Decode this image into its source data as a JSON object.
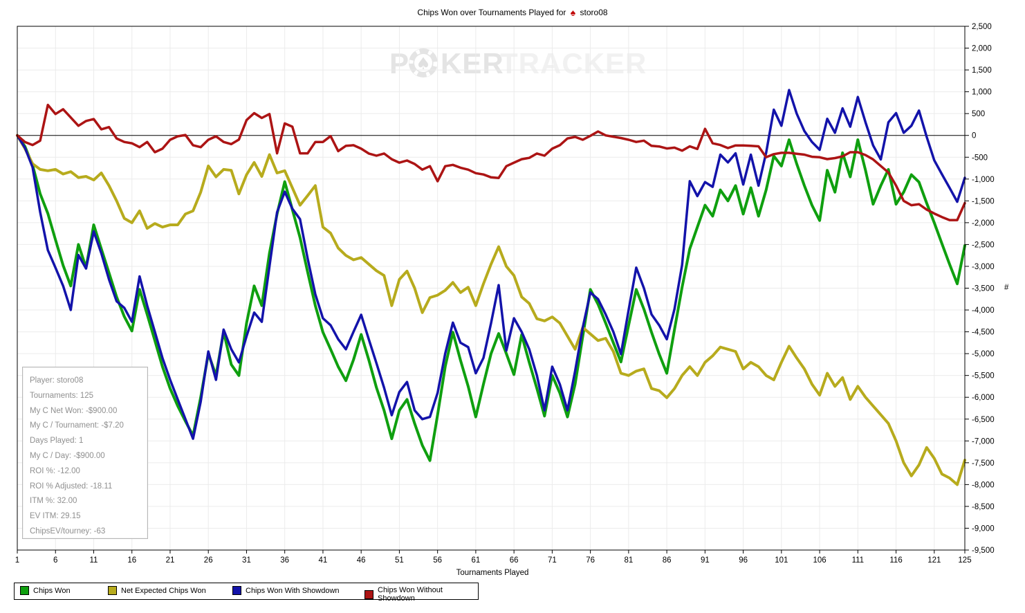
{
  "title": {
    "text": "Chips Won over Tournaments Played for",
    "player": "storo08",
    "spade_icon": "♠"
  },
  "watermark": {
    "part1": "P",
    "part2": "KER",
    "part3": "TRACKER",
    "chip_icon": "poker-chip"
  },
  "info_box": {
    "lines": [
      "Player: storo08",
      "Tournaments: 125",
      "My C Net Won: -$900.00",
      "My C / Tournament: -$7.20",
      "Days Played: 1",
      "My C / Day: -$900.00",
      "ROI %: -12.00",
      "ROI % Adjusted: -18.11",
      "ITM %: 32.00",
      "EV ITM: 29.15",
      "ChipsEV/tourney: -63"
    ]
  },
  "legend": {
    "items": [
      {
        "label": "Chips Won",
        "color": "#0f9f0f"
      },
      {
        "label": "Net Expected Chips Won",
        "color": "#b7ab1d"
      },
      {
        "label": "Chips Won With Showdown",
        "color": "#1313aa"
      },
      {
        "label": "Chips Won Without Showdown",
        "color": "#ac1414"
      }
    ]
  },
  "chart_data": {
    "type": "line",
    "title": "Chips Won over Tournaments Played for storo08",
    "xlabel": "Tournaments Played",
    "ylabel": "#",
    "x_start": 1,
    "x_end": 125,
    "ylim": [
      -9500,
      2500
    ],
    "ytick_step": 500,
    "xticks": [
      1,
      6,
      11,
      16,
      21,
      26,
      31,
      36,
      41,
      46,
      51,
      56,
      61,
      66,
      71,
      76,
      81,
      86,
      91,
      96,
      101,
      106,
      111,
      116,
      121,
      125
    ],
    "grid": true,
    "legend_position": "bottom-left",
    "series": [
      {
        "name": "Chips Won",
        "color": "#0f9f0f",
        "width": 4,
        "values": [
          0,
          -250,
          -680,
          -1340,
          -1790,
          -2390,
          -2980,
          -3450,
          -2500,
          -3030,
          -2050,
          -2600,
          -3150,
          -3700,
          -4150,
          -4480,
          -3530,
          -4100,
          -4700,
          -5300,
          -5800,
          -6200,
          -6550,
          -6880,
          -6000,
          -5000,
          -5500,
          -4500,
          -5250,
          -5500,
          -4300,
          -3450,
          -3900,
          -2700,
          -1800,
          -1060,
          -1700,
          -2340,
          -3130,
          -3900,
          -4510,
          -4900,
          -5300,
          -5620,
          -5140,
          -4560,
          -5140,
          -5780,
          -6300,
          -6950,
          -6300,
          -6050,
          -6600,
          -7100,
          -7450,
          -6400,
          -5300,
          -4510,
          -5150,
          -5750,
          -6450,
          -5700,
          -5000,
          -4540,
          -5000,
          -5480,
          -4570,
          -5200,
          -5800,
          -6430,
          -5500,
          -5900,
          -6450,
          -5700,
          -4600,
          -3530,
          -3870,
          -4300,
          -4750,
          -5190,
          -4350,
          -3530,
          -3980,
          -4510,
          -5010,
          -5450,
          -4450,
          -3480,
          -2600,
          -2100,
          -1600,
          -1850,
          -1250,
          -1500,
          -1150,
          -1800,
          -1200,
          -1850,
          -1250,
          -470,
          -700,
          -100,
          -650,
          -1150,
          -1600,
          -1950,
          -800,
          -1300,
          -400,
          -950,
          -100,
          -800,
          -1575,
          -1150,
          -780,
          -1575,
          -1300,
          -900,
          -1070,
          -1550,
          -2000,
          -2480,
          -2950,
          -3400,
          -2525
        ]
      },
      {
        "name": "Net Expected Chips Won",
        "color": "#b7ab1d",
        "width": 4,
        "values": [
          0,
          -300,
          -650,
          -780,
          -810,
          -780,
          -885,
          -830,
          -965,
          -940,
          -1020,
          -860,
          -1150,
          -1500,
          -1900,
          -2000,
          -1730,
          -2130,
          -2020,
          -2100,
          -2050,
          -2050,
          -1800,
          -1730,
          -1300,
          -700,
          -950,
          -780,
          -800,
          -1340,
          -900,
          -620,
          -940,
          -440,
          -860,
          -810,
          -1200,
          -1600,
          -1380,
          -1150,
          -2100,
          -2240,
          -2580,
          -2750,
          -2850,
          -2800,
          -2950,
          -3100,
          -3210,
          -3900,
          -3300,
          -3110,
          -3500,
          -4060,
          -3715,
          -3660,
          -3550,
          -3370,
          -3600,
          -3480,
          -3900,
          -3400,
          -2950,
          -2550,
          -3000,
          -3210,
          -3700,
          -3850,
          -4200,
          -4250,
          -4160,
          -4300,
          -4600,
          -4900,
          -4400,
          -4550,
          -4700,
          -4650,
          -4950,
          -5450,
          -5500,
          -5400,
          -5350,
          -5800,
          -5850,
          -6010,
          -5800,
          -5500,
          -5300,
          -5500,
          -5200,
          -5050,
          -4850,
          -4900,
          -4950,
          -5350,
          -5200,
          -5300,
          -5500,
          -5600,
          -5200,
          -4830,
          -5100,
          -5350,
          -5700,
          -5950,
          -5450,
          -5750,
          -5550,
          -6050,
          -5750,
          -6000,
          -6200,
          -6400,
          -6600,
          -7000,
          -7500,
          -7800,
          -7550,
          -7150,
          -7400,
          -7760,
          -7850,
          -8000,
          -7440
        ]
      },
      {
        "name": "Chips Won With Showdown",
        "color": "#1313aa",
        "width": 3.5,
        "values": [
          0,
          -280,
          -730,
          -1760,
          -2630,
          -3030,
          -3450,
          -4000,
          -2740,
          -3050,
          -2200,
          -2700,
          -3300,
          -3800,
          -3950,
          -4270,
          -3230,
          -3900,
          -4500,
          -5100,
          -5600,
          -6050,
          -6500,
          -6950,
          -6100,
          -4950,
          -5600,
          -4450,
          -4900,
          -5200,
          -4600,
          -4060,
          -4270,
          -3000,
          -1760,
          -1290,
          -1680,
          -1920,
          -2820,
          -3640,
          -4190,
          -4350,
          -4670,
          -4900,
          -4500,
          -4110,
          -4670,
          -5220,
          -5780,
          -6410,
          -5880,
          -5650,
          -6300,
          -6500,
          -6450,
          -5900,
          -5000,
          -4290,
          -4750,
          -4850,
          -5450,
          -5100,
          -4300,
          -3430,
          -4930,
          -4190,
          -4500,
          -4900,
          -5500,
          -6300,
          -5300,
          -5700,
          -6300,
          -5400,
          -4400,
          -3600,
          -3750,
          -4100,
          -4500,
          -5010,
          -4000,
          -3030,
          -3500,
          -4100,
          -4350,
          -4670,
          -3980,
          -2970,
          -1050,
          -1390,
          -1070,
          -1180,
          -440,
          -620,
          -410,
          -1125,
          -440,
          -1150,
          -400,
          590,
          220,
          1040,
          500,
          100,
          -150,
          -330,
          380,
          60,
          620,
          200,
          880,
          300,
          -230,
          -550,
          300,
          510,
          60,
          220,
          570,
          -30,
          -570,
          -890,
          -1200,
          -1520,
          -970
        ]
      },
      {
        "name": "Chips Won Without Showdown",
        "color": "#ac1414",
        "width": 3.5,
        "values": [
          0,
          -150,
          -220,
          -120,
          700,
          490,
          600,
          410,
          220,
          330,
          375,
          140,
          190,
          -70,
          -150,
          -180,
          -270,
          -150,
          -385,
          -305,
          -100,
          -20,
          10,
          -225,
          -270,
          -100,
          -20,
          -150,
          -200,
          -95,
          350,
          510,
          400,
          490,
          -410,
          275,
          200,
          -410,
          -410,
          -150,
          -150,
          -15,
          -360,
          -240,
          -225,
          -305,
          -415,
          -465,
          -415,
          -545,
          -625,
          -575,
          -655,
          -785,
          -705,
          -1050,
          -705,
          -675,
          -740,
          -785,
          -865,
          -895,
          -960,
          -975,
          -705,
          -625,
          -545,
          -515,
          -415,
          -465,
          -305,
          -225,
          -70,
          -35,
          -100,
          -10,
          90,
          0,
          -30,
          -60,
          -100,
          -150,
          -120,
          -240,
          -253,
          -300,
          -280,
          -350,
          -250,
          -310,
          150,
          -180,
          -220,
          -290,
          -230,
          -230,
          -240,
          -250,
          -500,
          -430,
          -400,
          -400,
          -420,
          -440,
          -490,
          -500,
          -543,
          -520,
          -480,
          -385,
          -385,
          -450,
          -550,
          -700,
          -850,
          -1150,
          -1500,
          -1600,
          -1575,
          -1700,
          -1790,
          -1870,
          -1940,
          -1940,
          -1550
        ]
      }
    ]
  }
}
